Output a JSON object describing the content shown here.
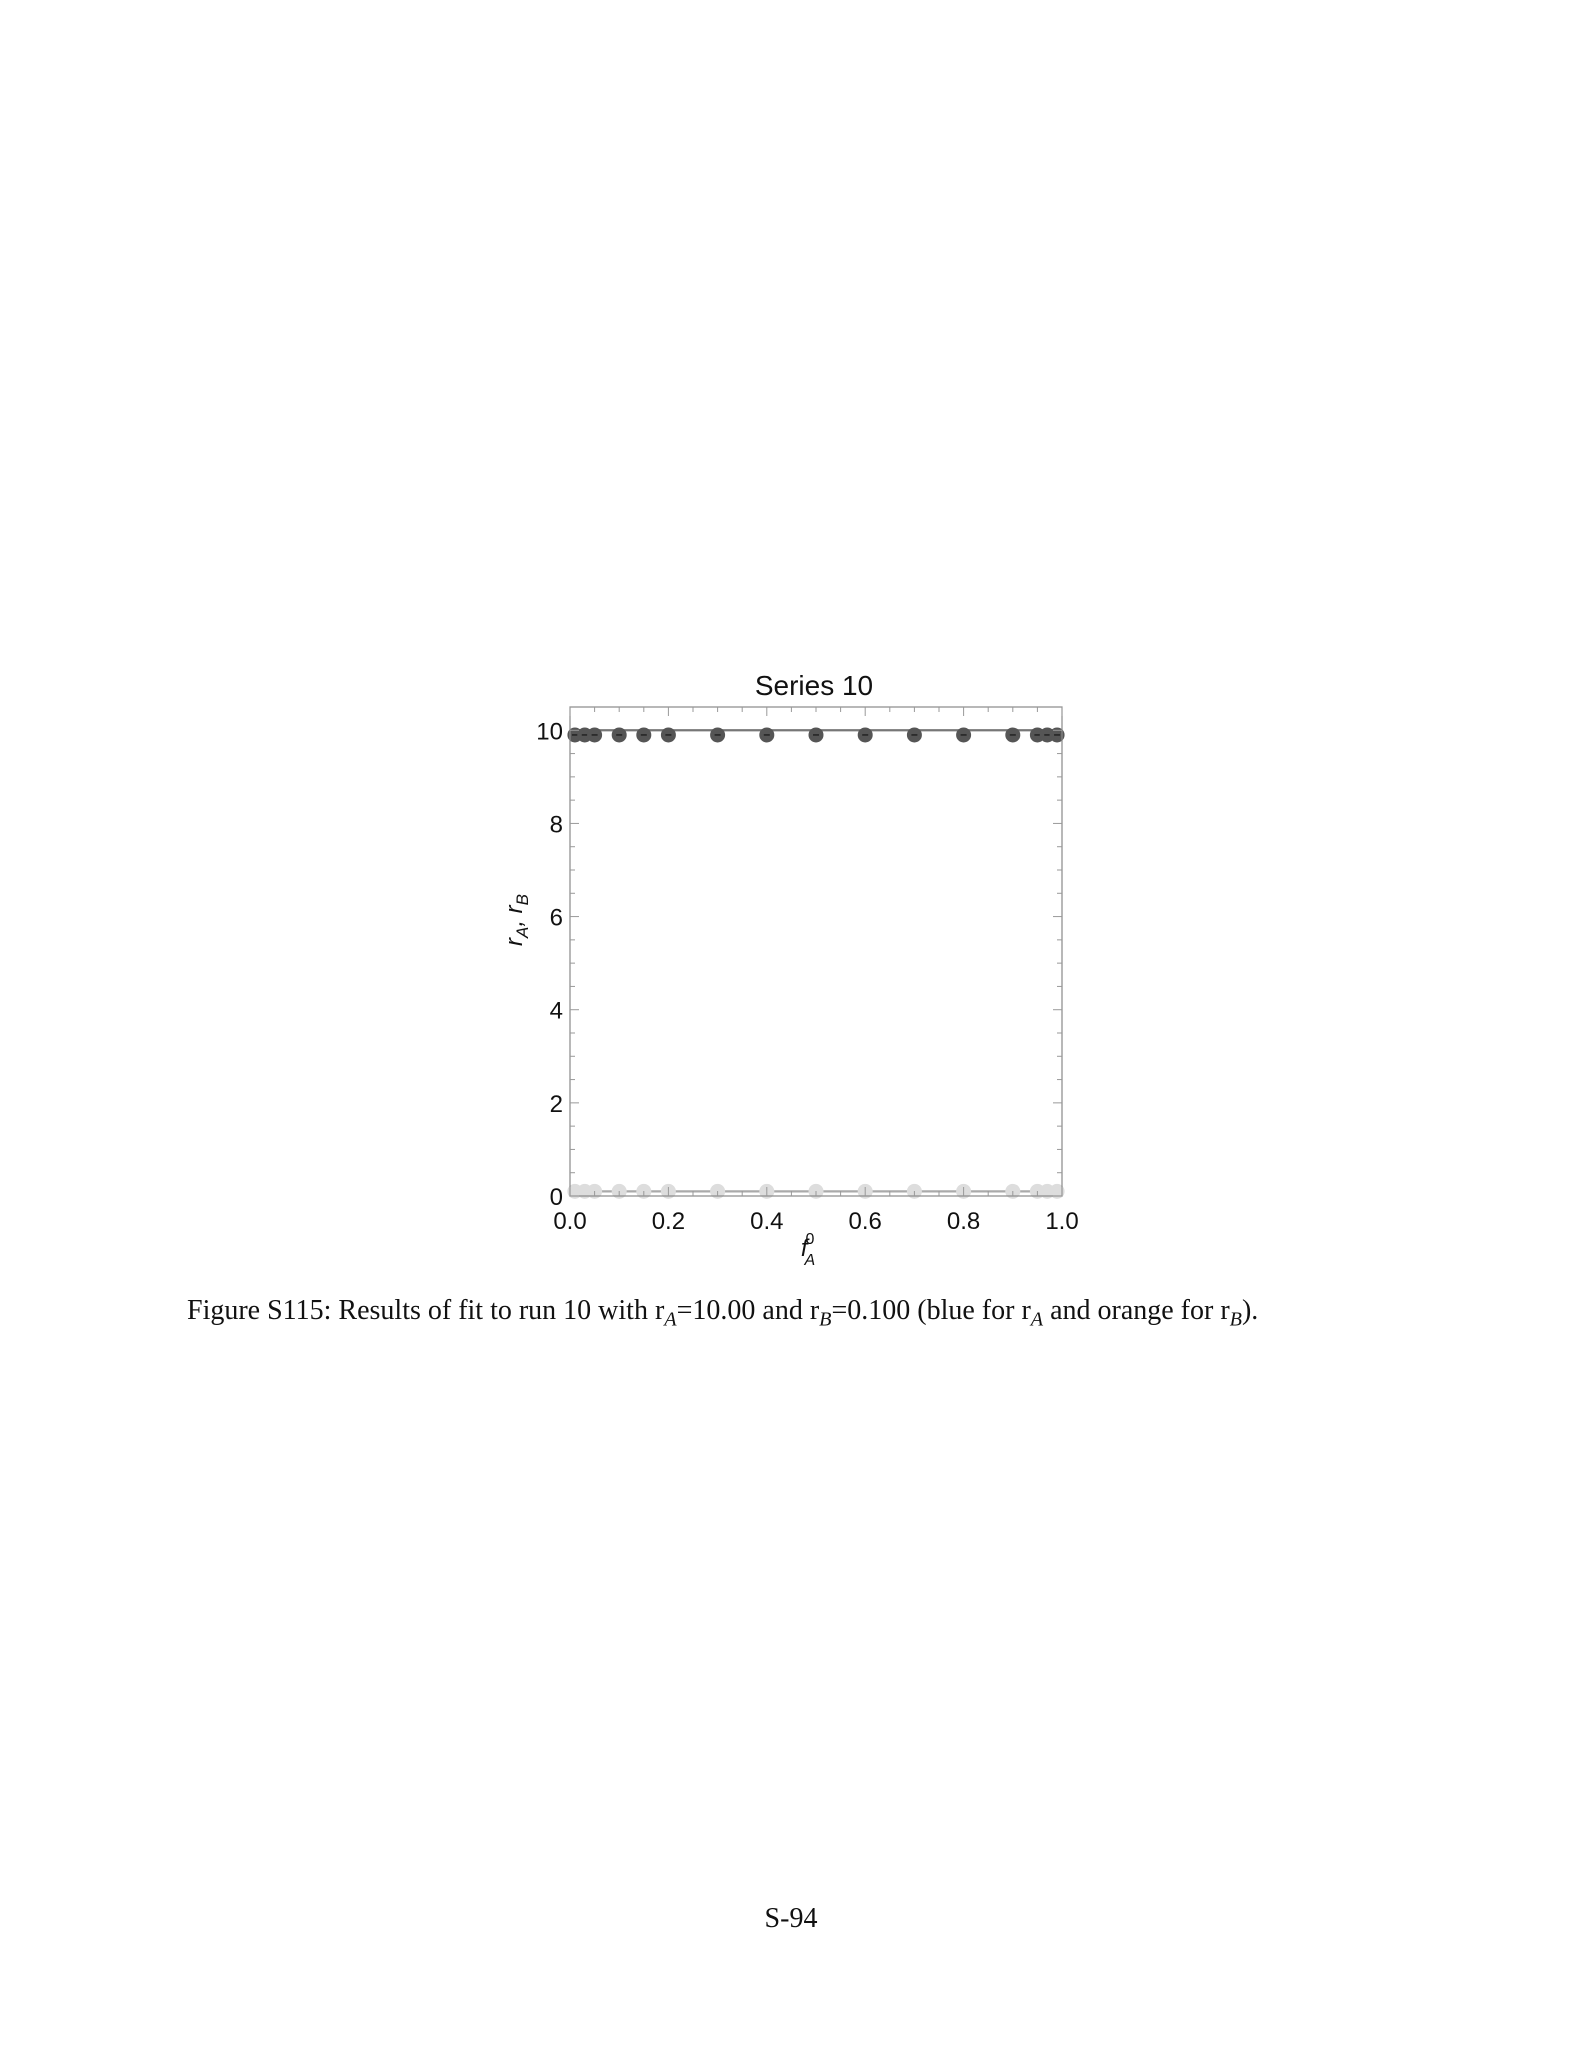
{
  "chart_data": {
    "type": "scatter",
    "title": "Series 10",
    "xlabel": "f_A^0",
    "ylabel": "r_A, r_B",
    "xlim": [
      0,
      1
    ],
    "ylim": [
      0,
      10.5
    ],
    "x_ticks": [
      "0.0",
      "0.2",
      "0.4",
      "0.6",
      "0.8",
      "1.0"
    ],
    "y_ticks": [
      "0",
      "2",
      "4",
      "6",
      "8",
      "10"
    ],
    "grid": false,
    "x": [
      0.01,
      0.03,
      0.05,
      0.1,
      0.15,
      0.2,
      0.3,
      0.4,
      0.5,
      0.6,
      0.7,
      0.8,
      0.9,
      0.95,
      0.97,
      0.99
    ],
    "series": [
      {
        "values": [
          9.9,
          9.9,
          9.9,
          9.9,
          9.9,
          9.9,
          9.9,
          9.9,
          9.9,
          9.9,
          9.9,
          9.9,
          9.9,
          9.9,
          9.9,
          9.9
        ],
        "fit": 10.0,
        "color": "#555555"
      },
      {
        "values": [
          0.1,
          0.1,
          0.1,
          0.1,
          0.1,
          0.1,
          0.1,
          0.1,
          0.1,
          0.1,
          0.1,
          0.1,
          0.1,
          0.1,
          0.1,
          0.1
        ],
        "fit": 0.1,
        "color": "#dddddd"
      }
    ]
  },
  "caption": {
    "prefix": "Figure S115: Results of fit to run 10 with r",
    "ra_value": "=10.00 and r",
    "rb_value": "=0.100 (blue for r",
    "mid": " and orange for r",
    "end": ").",
    "sub_a": "A",
    "sub_b": "B"
  },
  "page_number": "S-94"
}
